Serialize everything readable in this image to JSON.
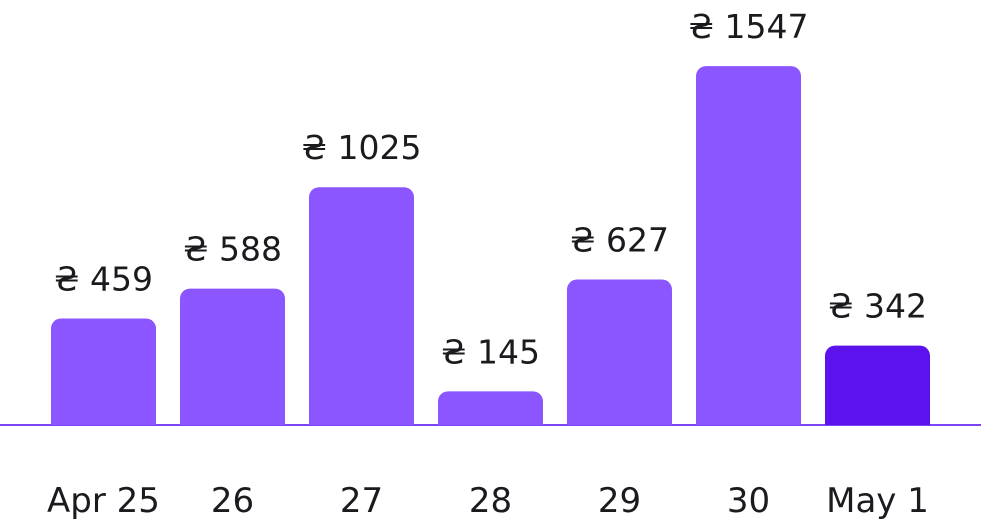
{
  "chart_data": {
    "type": "bar",
    "categories": [
      "Apr 25",
      "26",
      "27",
      "28",
      "29",
      "30",
      "May 1"
    ],
    "values": [
      459,
      588,
      1025,
      145,
      627,
      1547,
      342
    ],
    "value_labels": [
      "₴ 459",
      "₴ 588",
      "₴ 1025",
      "₴ 145",
      "₴ 627",
      "₴ 1547",
      "₴ 342"
    ],
    "highlight_index": 6,
    "colors": {
      "bar": "#8b55ff",
      "bar_highlight": "#5b12ec",
      "baseline": "#7b44f4"
    },
    "grid": false
  }
}
